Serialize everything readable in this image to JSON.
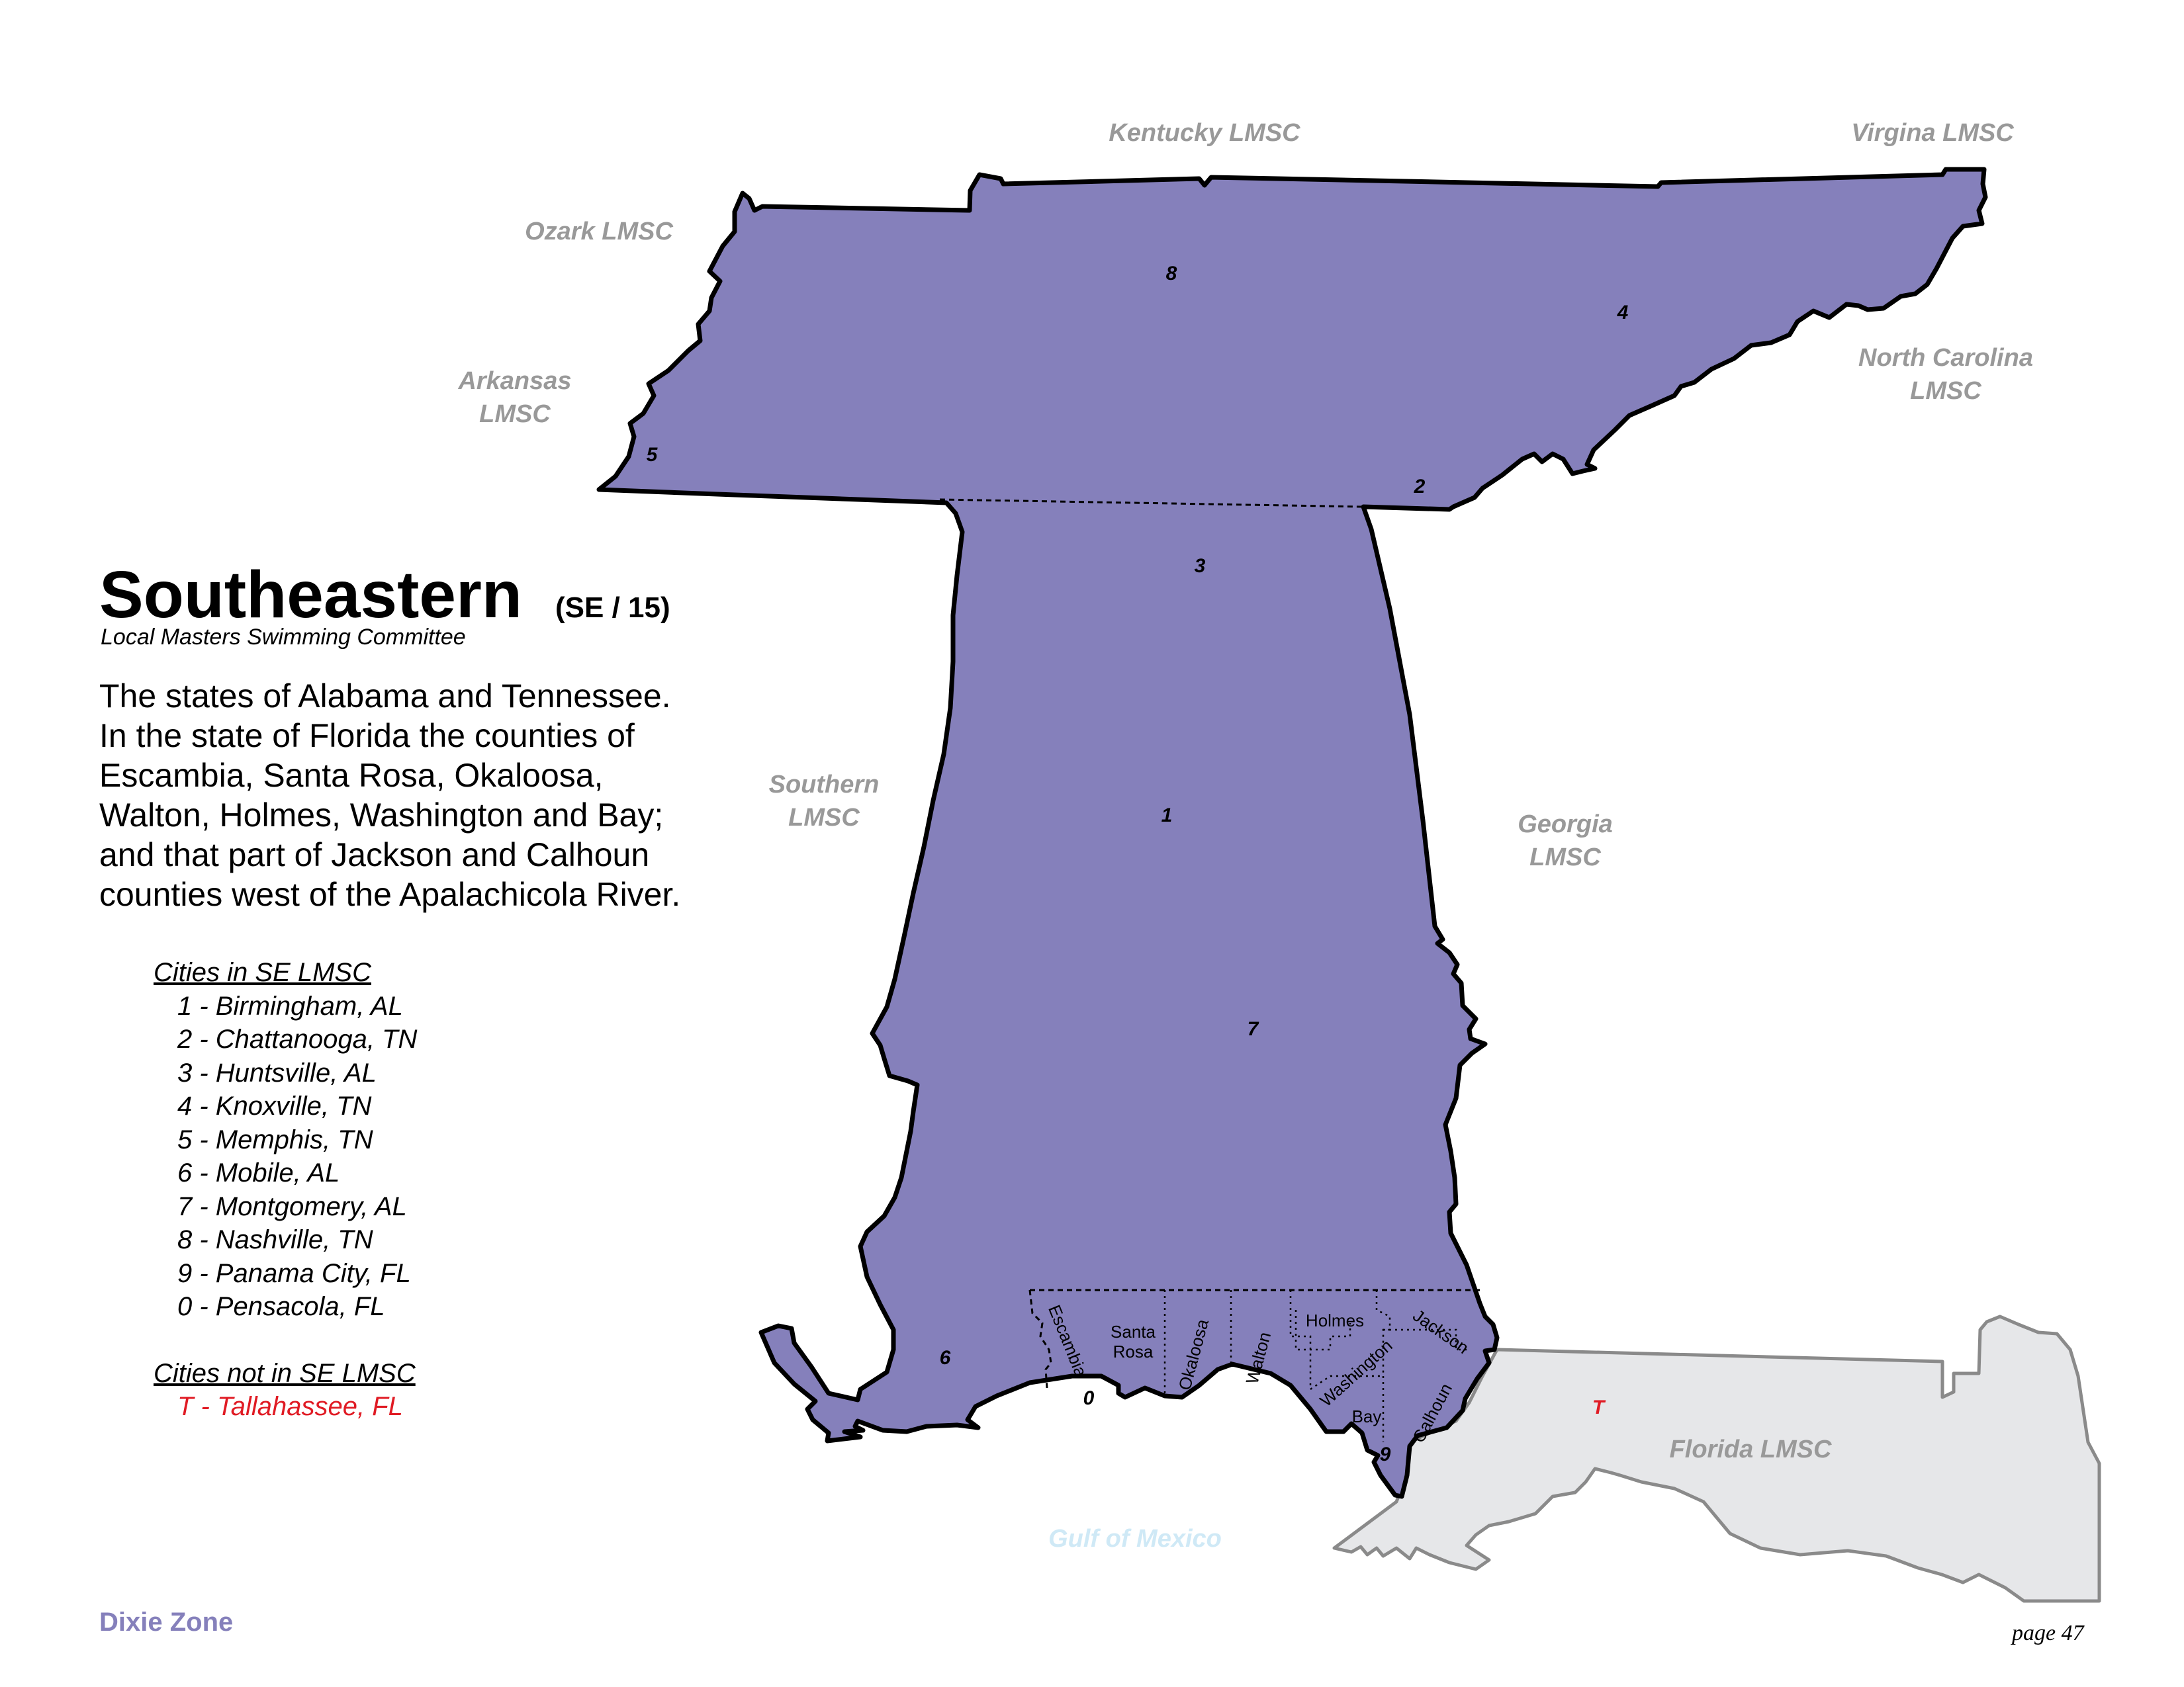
{
  "colors": {
    "region_fill": "#8580bb",
    "region_stroke": "#000000",
    "florida_fill": "#e6e7e9",
    "florida_stroke": "#8a8a8a",
    "neighbor_label": "#999999",
    "gulf_label": "#cfe9f6",
    "zone_label": "#8580bb",
    "not_in_city": "#e01b24"
  },
  "title": {
    "name": "Southeastern",
    "code": "(SE / 15)",
    "subtitle": "Local Masters Swimming Committee"
  },
  "description": [
    "The states of Alabama and Tennessee.",
    "In the state of Florida the counties of",
    "Escambia, Santa Rosa, Okaloosa,",
    "Walton, Holmes, Washington and Bay;",
    "and that part of Jackson and Calhoun",
    "counties west of the Apalachicola River."
  ],
  "cities": {
    "header_in": "Cities in SE LMSC",
    "in": [
      "1 - Birmingham, AL",
      "2 - Chattanooga, TN",
      "3 - Huntsville, AL",
      "4 - Knoxville, TN",
      "5 - Memphis, TN",
      "6 - Mobile, AL",
      "7 - Montgomery, AL",
      "8 - Nashville, TN",
      "9 - Panama City, FL",
      "0 - Pensacola, FL"
    ],
    "header_out": "Cities not in SE LMSC",
    "out": [
      "T - Tallahassee, FL"
    ]
  },
  "map": {
    "neighbors": {
      "kentucky": "Kentucky LMSC",
      "virginia": "Virgina LMSC",
      "ozark": "Ozark LMSC",
      "arkansas_1": "Arkansas",
      "arkansas_2": "LMSC",
      "north_carolina_1": "North Carolina",
      "north_carolina_2": "LMSC",
      "southern_1": "Southern",
      "southern_2": "LMSC",
      "georgia_1": "Georgia",
      "georgia_2": "LMSC",
      "florida": "Florida LMSC",
      "gulf": "Gulf of Mexico"
    },
    "city_markers": {
      "m1": "1",
      "m2": "2",
      "m3": "3",
      "m4": "4",
      "m5": "5",
      "m6": "6",
      "m7": "7",
      "m8": "8",
      "m9": "9",
      "m0": "0",
      "mT": "T"
    },
    "counties": {
      "escambia": "Escambia",
      "santa_rosa_1": "Santa",
      "santa_rosa_2": "Rosa",
      "okaloosa": "Okaloosa",
      "walton": "Walton",
      "holmes": "Holmes",
      "washington": "Washington",
      "jackson": "Jackson",
      "bay": "Bay",
      "calhoun": "Calhoun"
    }
  },
  "footer": {
    "zone": "Dixie Zone",
    "page": "page 47"
  }
}
